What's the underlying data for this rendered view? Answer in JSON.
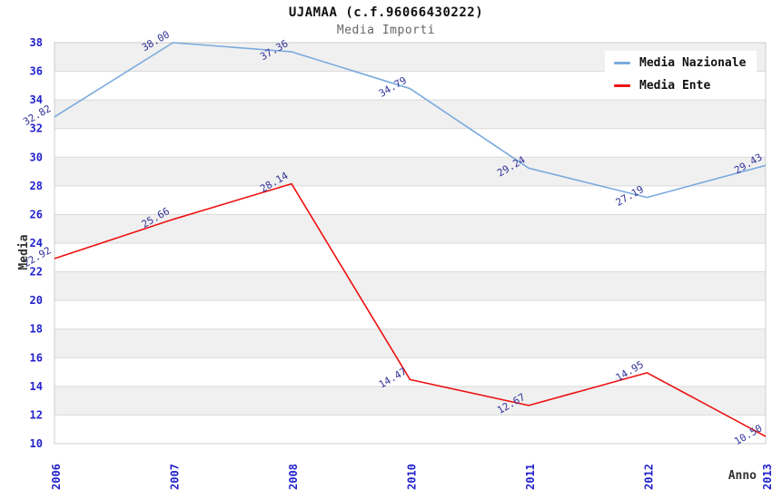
{
  "chart_data": {
    "type": "line",
    "title": "UJAMAA (c.f.96066430222)",
    "subtitle": "Media Importi",
    "xlabel": "Anno",
    "ylabel": "Media",
    "categories": [
      "2006",
      "2007",
      "2008",
      "2010",
      "2011",
      "2012",
      "2013"
    ],
    "series": [
      {
        "name": "Media Nazionale",
        "color": "#7aabdd",
        "values": [
          32.82,
          38.0,
          37.36,
          34.79,
          29.24,
          27.19,
          29.43
        ]
      },
      {
        "name": "Media Ente",
        "color": "#ee1111",
        "values": [
          22.92,
          25.66,
          28.14,
          14.47,
          12.67,
          14.95,
          10.5
        ]
      }
    ],
    "point_labels": {
      "Media Nazionale": [
        "32.82",
        "38.00",
        "37.36",
        "34.79",
        "29.24",
        "27.19",
        "29.43"
      ],
      "Media Ente": [
        "22.92",
        "25.66",
        "28.14",
        "14.47",
        "12.67",
        "14.95",
        "10.50"
      ]
    },
    "ylim": [
      10,
      38
    ],
    "ytick_step": 2,
    "grid": true,
    "legend_position": "top-right",
    "colors": {
      "tick_labels": "#2222cc",
      "point_labels": "#333399",
      "band_alt": "#f0f0f0",
      "grid_line": "#d9d9d9",
      "plot_border": "#cccccc",
      "axis_titles": "#333333",
      "title": "#111111",
      "subtitle": "#666666",
      "background": "#ffffff"
    }
  }
}
